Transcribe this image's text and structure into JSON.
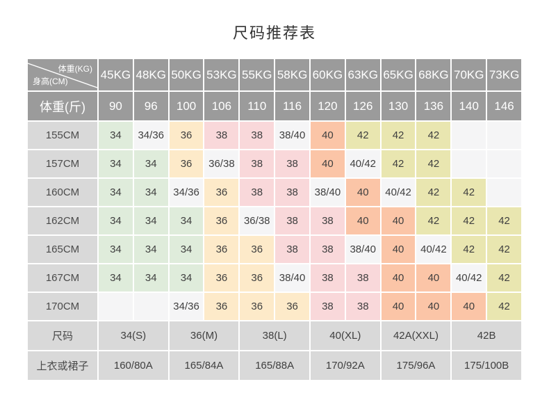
{
  "title": "尺码推荐表",
  "colors": {
    "header_bg": "#9b9b9b",
    "header_text": "#ffffff",
    "label_bg": "#d9d9d9",
    "green": "#dfecdb",
    "cream": "#fdeac9",
    "pink": "#f9d8da",
    "salmon": "#fbc5a7",
    "khaki": "#e9e6b0",
    "plain": "#f5f5f6",
    "cell_text": "#3f3f3f"
  },
  "chart_data": {
    "type": "table",
    "corner": {
      "weight_label": "体重(KG)",
      "height_label": "身高(CM)"
    },
    "weight_kg_headers": [
      "45KG",
      "48KG",
      "50KG",
      "53KG",
      "55KG",
      "58KG",
      "60KG",
      "63KG",
      "65KG",
      "68KG",
      "70KG",
      "73KG"
    ],
    "weight_jin_label": "体重(斤)",
    "weight_jin_values": [
      "90",
      "96",
      "100",
      "106",
      "110",
      "116",
      "120",
      "126",
      "130",
      "136",
      "140",
      "146"
    ],
    "height_rows": [
      {
        "height": "155CM",
        "cells": [
          {
            "v": "34",
            "c": "green"
          },
          {
            "v": "34/36",
            "c": "plain"
          },
          {
            "v": "36",
            "c": "cream"
          },
          {
            "v": "38",
            "c": "pink"
          },
          {
            "v": "38",
            "c": "pink"
          },
          {
            "v": "38/40",
            "c": "plain"
          },
          {
            "v": "40",
            "c": "salmon"
          },
          {
            "v": "42",
            "c": "khaki"
          },
          {
            "v": "42",
            "c": "khaki"
          },
          {
            "v": "42",
            "c": "khaki"
          },
          {
            "v": "",
            "c": "plain"
          },
          {
            "v": "",
            "c": "plain"
          }
        ]
      },
      {
        "height": "157CM",
        "cells": [
          {
            "v": "34",
            "c": "green"
          },
          {
            "v": "34",
            "c": "green"
          },
          {
            "v": "36",
            "c": "cream"
          },
          {
            "v": "36/38",
            "c": "plain"
          },
          {
            "v": "38",
            "c": "pink"
          },
          {
            "v": "38",
            "c": "pink"
          },
          {
            "v": "40",
            "c": "salmon"
          },
          {
            "v": "40/42",
            "c": "plain"
          },
          {
            "v": "42",
            "c": "khaki"
          },
          {
            "v": "42",
            "c": "khaki"
          },
          {
            "v": "",
            "c": "plain"
          },
          {
            "v": "",
            "c": "plain"
          }
        ]
      },
      {
        "height": "160CM",
        "cells": [
          {
            "v": "34",
            "c": "green"
          },
          {
            "v": "34",
            "c": "green"
          },
          {
            "v": "34/36",
            "c": "plain"
          },
          {
            "v": "36",
            "c": "cream"
          },
          {
            "v": "38",
            "c": "pink"
          },
          {
            "v": "38",
            "c": "pink"
          },
          {
            "v": "38/40",
            "c": "plain"
          },
          {
            "v": "40",
            "c": "salmon"
          },
          {
            "v": "40/42",
            "c": "plain"
          },
          {
            "v": "42",
            "c": "khaki"
          },
          {
            "v": "42",
            "c": "khaki"
          },
          {
            "v": "",
            "c": "plain"
          }
        ]
      },
      {
        "height": "162CM",
        "cells": [
          {
            "v": "34",
            "c": "green"
          },
          {
            "v": "34",
            "c": "green"
          },
          {
            "v": "34",
            "c": "green"
          },
          {
            "v": "36",
            "c": "cream"
          },
          {
            "v": "36/38",
            "c": "plain"
          },
          {
            "v": "38",
            "c": "pink"
          },
          {
            "v": "38",
            "c": "pink"
          },
          {
            "v": "40",
            "c": "salmon"
          },
          {
            "v": "40",
            "c": "salmon"
          },
          {
            "v": "42",
            "c": "khaki"
          },
          {
            "v": "42",
            "c": "khaki"
          },
          {
            "v": "42",
            "c": "khaki"
          }
        ]
      },
      {
        "height": "165CM",
        "cells": [
          {
            "v": "34",
            "c": "green"
          },
          {
            "v": "34",
            "c": "green"
          },
          {
            "v": "34",
            "c": "green"
          },
          {
            "v": "36",
            "c": "cream"
          },
          {
            "v": "36",
            "c": "cream"
          },
          {
            "v": "38",
            "c": "pink"
          },
          {
            "v": "38",
            "c": "pink"
          },
          {
            "v": "38/40",
            "c": "plain"
          },
          {
            "v": "40",
            "c": "salmon"
          },
          {
            "v": "40/42",
            "c": "plain"
          },
          {
            "v": "42",
            "c": "khaki"
          },
          {
            "v": "42",
            "c": "khaki"
          }
        ]
      },
      {
        "height": "167CM",
        "cells": [
          {
            "v": "34",
            "c": "green"
          },
          {
            "v": "34",
            "c": "green"
          },
          {
            "v": "34",
            "c": "green"
          },
          {
            "v": "36",
            "c": "cream"
          },
          {
            "v": "36",
            "c": "cream"
          },
          {
            "v": "38/40",
            "c": "plain"
          },
          {
            "v": "38",
            "c": "pink"
          },
          {
            "v": "38",
            "c": "pink"
          },
          {
            "v": "40",
            "c": "salmon"
          },
          {
            "v": "40",
            "c": "salmon"
          },
          {
            "v": "40/42",
            "c": "plain"
          },
          {
            "v": "42",
            "c": "khaki"
          }
        ]
      },
      {
        "height": "170CM",
        "cells": [
          {
            "v": "",
            "c": "plain"
          },
          {
            "v": "",
            "c": "plain"
          },
          {
            "v": "34/36",
            "c": "plain"
          },
          {
            "v": "36",
            "c": "cream"
          },
          {
            "v": "36",
            "c": "cream"
          },
          {
            "v": "36",
            "c": "cream"
          },
          {
            "v": "38",
            "c": "pink"
          },
          {
            "v": "38",
            "c": "pink"
          },
          {
            "v": "40",
            "c": "salmon"
          },
          {
            "v": "40",
            "c": "salmon"
          },
          {
            "v": "40",
            "c": "salmon"
          },
          {
            "v": "42",
            "c": "khaki"
          }
        ]
      }
    ],
    "size_row": {
      "label": "尺码",
      "values": [
        "34(S)",
        "36(M)",
        "38(L)",
        "40(XL)",
        "42A(XXL)",
        "42B"
      ]
    },
    "garment_row": {
      "label": "上衣或裙子",
      "values": [
        "160/80A",
        "165/84A",
        "165/88A",
        "170/92A",
        "175/96A",
        "175/100B"
      ]
    }
  }
}
